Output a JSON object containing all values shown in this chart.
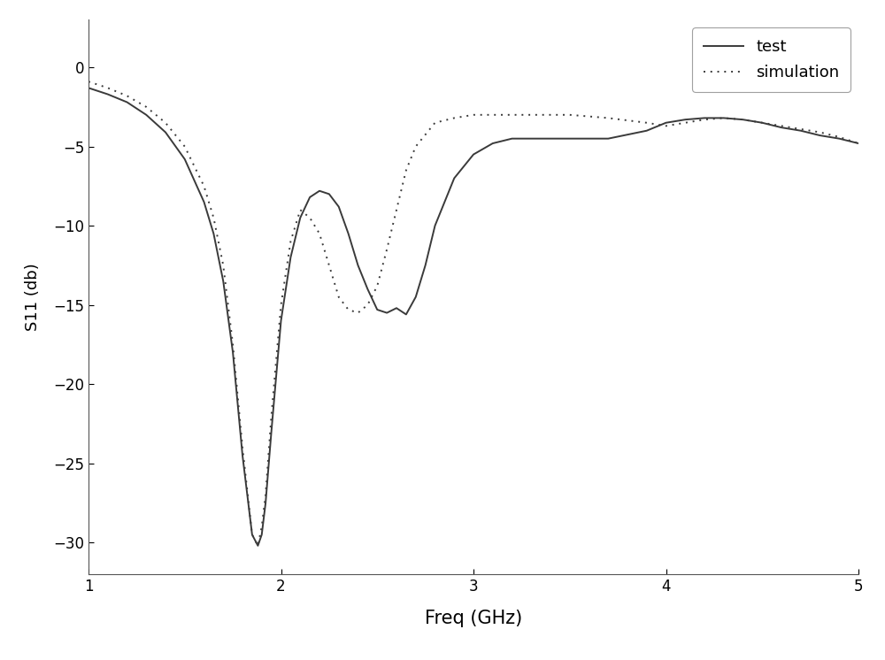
{
  "title": "",
  "xlabel": "Freq (GHz)",
  "ylabel": "S11 (db)",
  "xlim": [
    1,
    5
  ],
  "ylim": [
    -32,
    3
  ],
  "yticks": [
    0,
    -5,
    -10,
    -15,
    -20,
    -25,
    -30
  ],
  "xticks": [
    1,
    2,
    3,
    4,
    5
  ],
  "background_color": "#ffffff",
  "grid": false,
  "legend_entries": [
    "test",
    "simulation"
  ],
  "test_color": "#3a3a3a",
  "sim_color": "#3a3a3a",
  "test_x": [
    1.0,
    1.1,
    1.2,
    1.3,
    1.4,
    1.5,
    1.6,
    1.65,
    1.7,
    1.75,
    1.8,
    1.85,
    1.88,
    1.9,
    1.92,
    1.95,
    2.0,
    2.05,
    2.1,
    2.15,
    2.2,
    2.25,
    2.3,
    2.35,
    2.4,
    2.45,
    2.5,
    2.55,
    2.6,
    2.65,
    2.7,
    2.75,
    2.8,
    2.9,
    3.0,
    3.1,
    3.2,
    3.3,
    3.5,
    3.7,
    3.9,
    4.0,
    4.1,
    4.2,
    4.3,
    4.4,
    4.5,
    4.6,
    4.7,
    4.8,
    4.9,
    5.0
  ],
  "test_y": [
    -1.3,
    -1.7,
    -2.2,
    -3.0,
    -4.1,
    -5.8,
    -8.5,
    -10.5,
    -13.5,
    -18.0,
    -24.5,
    -29.5,
    -30.2,
    -29.5,
    -27.5,
    -23.0,
    -16.0,
    -12.0,
    -9.5,
    -8.2,
    -7.8,
    -8.0,
    -8.8,
    -10.5,
    -12.5,
    -14.0,
    -15.3,
    -15.5,
    -15.2,
    -15.6,
    -14.5,
    -12.5,
    -10.0,
    -7.0,
    -5.5,
    -4.8,
    -4.5,
    -4.5,
    -4.5,
    -4.5,
    -4.0,
    -3.5,
    -3.3,
    -3.2,
    -3.2,
    -3.3,
    -3.5,
    -3.8,
    -4.0,
    -4.3,
    -4.5,
    -4.8
  ],
  "sim_x": [
    1.0,
    1.1,
    1.2,
    1.3,
    1.4,
    1.5,
    1.6,
    1.65,
    1.7,
    1.75,
    1.8,
    1.85,
    1.88,
    1.9,
    1.92,
    1.95,
    2.0,
    2.05,
    2.1,
    2.15,
    2.2,
    2.25,
    2.3,
    2.35,
    2.4,
    2.45,
    2.5,
    2.55,
    2.6,
    2.65,
    2.7,
    2.8,
    2.9,
    3.0,
    3.1,
    3.2,
    3.3,
    3.5,
    3.7,
    3.9,
    4.0,
    4.1,
    4.2,
    4.3,
    4.4,
    4.5,
    4.6,
    4.7,
    4.8,
    4.9,
    5.0
  ],
  "sim_y": [
    -0.9,
    -1.3,
    -1.8,
    -2.5,
    -3.5,
    -5.0,
    -7.5,
    -9.5,
    -12.5,
    -17.5,
    -24.0,
    -29.5,
    -30.2,
    -29.0,
    -27.0,
    -22.0,
    -15.0,
    -11.0,
    -9.0,
    -9.5,
    -10.5,
    -12.5,
    -14.5,
    -15.3,
    -15.5,
    -15.0,
    -13.8,
    -11.5,
    -9.0,
    -6.5,
    -5.0,
    -3.5,
    -3.2,
    -3.0,
    -3.0,
    -3.0,
    -3.0,
    -3.0,
    -3.2,
    -3.5,
    -3.7,
    -3.5,
    -3.3,
    -3.2,
    -3.3,
    -3.5,
    -3.7,
    -3.9,
    -4.1,
    -4.4,
    -4.8
  ]
}
